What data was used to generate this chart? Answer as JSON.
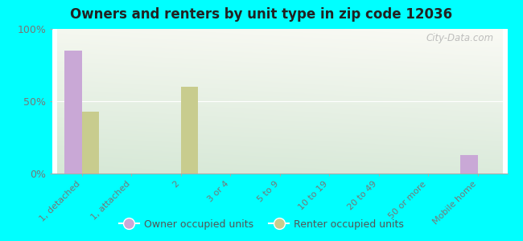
{
  "title": "Owners and renters by unit type in zip code 12036",
  "categories": [
    "1, detached",
    "1, attached",
    "2",
    "3 or 4",
    "5 to 9",
    "10 to 19",
    "20 to 49",
    "50 or more",
    "Mobile home"
  ],
  "owner_values": [
    85,
    0,
    0,
    0,
    0,
    0,
    0,
    0,
    13
  ],
  "renter_values": [
    43,
    0,
    60,
    0,
    0,
    0,
    0,
    0,
    0
  ],
  "owner_color": "#c9a8d6",
  "renter_color": "#c8cc8e",
  "ylim": [
    0,
    100
  ],
  "yticks": [
    0,
    50,
    100
  ],
  "ytick_labels": [
    "0%",
    "50%",
    "100%"
  ],
  "background_color": "#00ffff",
  "grad_color_topleft": "#e8f4e8",
  "grad_color_bottomleft": "#cce8cc",
  "grad_color_topright": "#f5f8f0",
  "bar_width": 0.35,
  "legend_owner": "Owner occupied units",
  "legend_renter": "Renter occupied units",
  "watermark": "City-Data.com",
  "tick_color": "#777777",
  "spine_color": "#aaaaaa"
}
